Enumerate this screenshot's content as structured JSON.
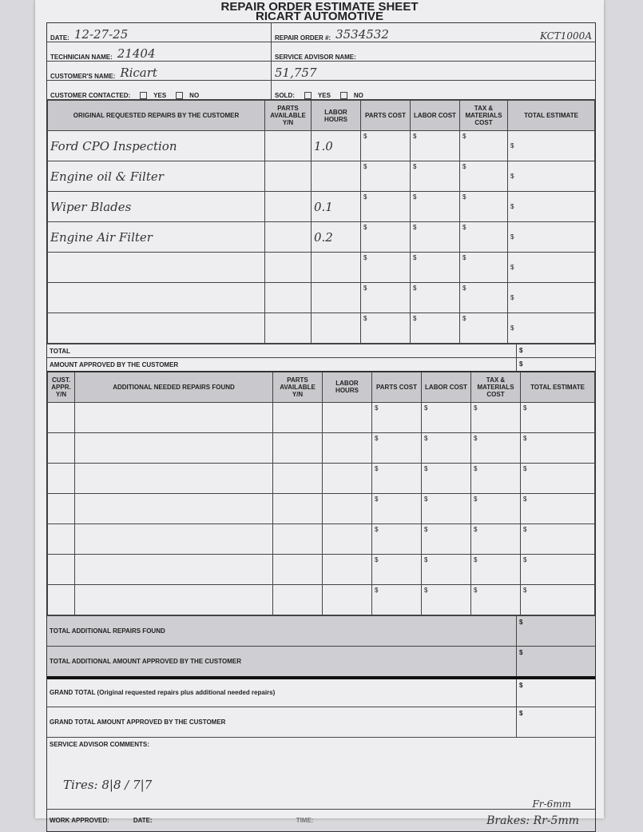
{
  "title": {
    "line1": "REPAIR ORDER ESTIMATE SHEET",
    "line2": "RICART AUTOMOTIVE"
  },
  "header": {
    "date_label": "DATE:",
    "date": "12-27-25",
    "technician_label": "TECHNICIAN NAME:",
    "technician": "21404",
    "customer_label": "CUSTOMER'S NAME:",
    "customer": "Ricart",
    "contacted_label": "CUSTOMER CONTACTED:",
    "yes": "YES",
    "no": "NO",
    "repair_order_label": "REPAIR ORDER #:",
    "repair_order": "3534532",
    "code": "KCT1000A",
    "advisor_label": "SERVICE ADVISOR NAME:",
    "mileage": "51,757",
    "sold_label": "SOLD:"
  },
  "original": {
    "columns": [
      "ORIGINAL REQUESTED REPAIRS BY THE CUSTOMER",
      "PARTS AVAILABLE Y/N",
      "LABOR HOURS",
      "PARTS COST",
      "LABOR COST",
      "TAX & MATERIALS COST",
      "TOTAL ESTIMATE"
    ],
    "currency": "$",
    "rows": [
      {
        "repair": "Ford CPO Inspection",
        "hours": "1.0"
      },
      {
        "repair": "Engine oil & Filter",
        "hours": ""
      },
      {
        "repair": "Wiper Blades",
        "hours": "0.1"
      },
      {
        "repair": "Engine Air Filter",
        "hours": "0.2"
      },
      {
        "repair": "",
        "hours": ""
      },
      {
        "repair": "",
        "hours": ""
      },
      {
        "repair": "",
        "hours": ""
      }
    ],
    "total_label": "TOTAL",
    "approved_label": "AMOUNT APPROVED BY THE CUSTOMER"
  },
  "additional": {
    "columns": [
      "CUST. APPR. Y/N",
      "ADDITIONAL NEEDED REPAIRS FOUND",
      "PARTS AVAILABLE Y/N",
      "LABOR HOURS",
      "PARTS COST",
      "LABOR COST",
      "TAX & MATERIALS COST",
      "TOTAL ESTIMATE"
    ],
    "row_count": 7
  },
  "totals": {
    "additional_found": "TOTAL ADDITIONAL REPAIRS FOUND",
    "additional_approved": "TOTAL ADDITIONAL AMOUNT APPROVED BY THE CUSTOMER",
    "grand_total": "GRAND TOTAL (Original requested repairs plus additional needed repairs)",
    "grand_approved": "GRAND TOTAL AMOUNT APPROVED BY THE CUSTOMER",
    "comments_label": "SERVICE ADVISOR COMMENTS:"
  },
  "notes": {
    "tires": "Tires: 8|8 / 7|7",
    "brakes_front": "Fr-6mm",
    "brakes": "Brakes: Rr-5mm"
  },
  "footer": {
    "work_approved": "WORK APPROVED:",
    "date": "DATE:",
    "time": "TIME:"
  }
}
